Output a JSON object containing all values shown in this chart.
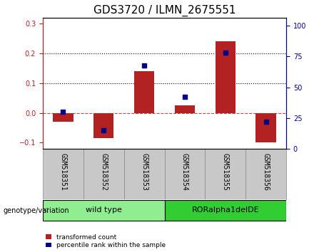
{
  "title": "GDS3720 / ILMN_2675551",
  "categories": [
    "GSM518351",
    "GSM518352",
    "GSM518353",
    "GSM518354",
    "GSM518355",
    "GSM518356"
  ],
  "red_bars": [
    -0.03,
    -0.085,
    0.14,
    0.025,
    0.24,
    -0.1
  ],
  "blue_dots": [
    30,
    15,
    68,
    42,
    78,
    22
  ],
  "ylim_left": [
    -0.12,
    0.32
  ],
  "ylim_right": [
    0,
    106.67
  ],
  "yticks_left": [
    -0.1,
    0.0,
    0.1,
    0.2,
    0.3
  ],
  "yticks_right": [
    0,
    25,
    50,
    75,
    100
  ],
  "hlines": [
    0.1,
    0.2
  ],
  "zero_line": 0.0,
  "bar_color": "#B22222",
  "dot_color": "#00008B",
  "zero_line_color": "#CC4444",
  "hline_color": "#000000",
  "group1_label": "wild type",
  "group2_label": "RORalpha1delDE",
  "group1_color": "#90EE90",
  "group2_color": "#32CD32",
  "genotype_label": "genotype/variation",
  "legend_bar_label": "transformed count",
  "legend_dot_label": "percentile rank within the sample",
  "tick_label_fontsize": 7,
  "title_fontsize": 11,
  "group1_indices": [
    0,
    1,
    2
  ],
  "group2_indices": [
    3,
    4,
    5
  ],
  "xtick_bg_color": "#C8C8C8",
  "xtick_border_color": "#888888"
}
